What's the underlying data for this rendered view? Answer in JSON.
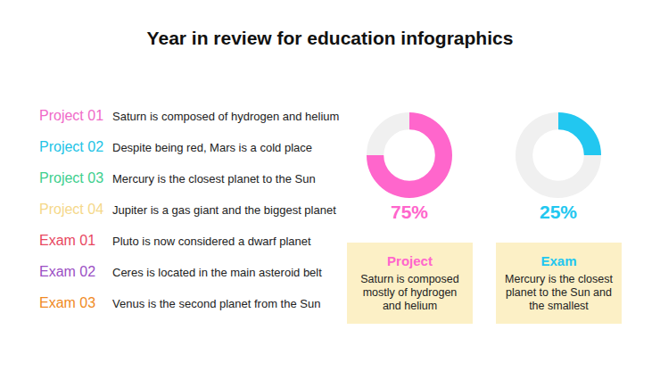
{
  "title": "Year in review for education infographics",
  "list": [
    {
      "label": "Project 01",
      "text": "Saturn is composed of hydrogen and helium",
      "color": "#f06ac8"
    },
    {
      "label": "Project 02",
      "text": "Despite being red, Mars is a cold place",
      "color": "#22c3e6"
    },
    {
      "label": "Project 03",
      "text": "Mercury is the closest planet to the Sun",
      "color": "#3ecf8e"
    },
    {
      "label": "Project 04",
      "text": "Jupiter is a gas giant and the biggest planet",
      "color": "#f5d88a"
    },
    {
      "label": "Exam 01",
      "text": "Pluto is now considered a dwarf planet",
      "color": "#e8475f"
    },
    {
      "label": "Exam 02",
      "text": "Ceres is located in the main asteroid belt",
      "color": "#9b4fc4"
    },
    {
      "label": "Exam 03",
      "text": "Venus is the second planet from the Sun",
      "color": "#f08a24"
    }
  ],
  "chart_data": [
    {
      "type": "doughnut",
      "values": [
        75,
        25
      ],
      "value_labels": [
        "75%",
        null
      ],
      "data_labels": true,
      "colors": [
        "#ff66cc",
        "#f0f0f0"
      ],
      "card": {
        "title": "Project",
        "text": "Saturn is composed mostly of hydrogen and helium"
      }
    },
    {
      "type": "doughnut",
      "values": [
        25,
        75
      ],
      "value_labels": [
        "25%",
        null
      ],
      "data_labels": true,
      "colors": [
        "#22c7f0",
        "#f0f0f0"
      ],
      "card": {
        "title": "Exam",
        "text": "Mercury is the closest planet to the Sun and the smallest"
      }
    }
  ]
}
